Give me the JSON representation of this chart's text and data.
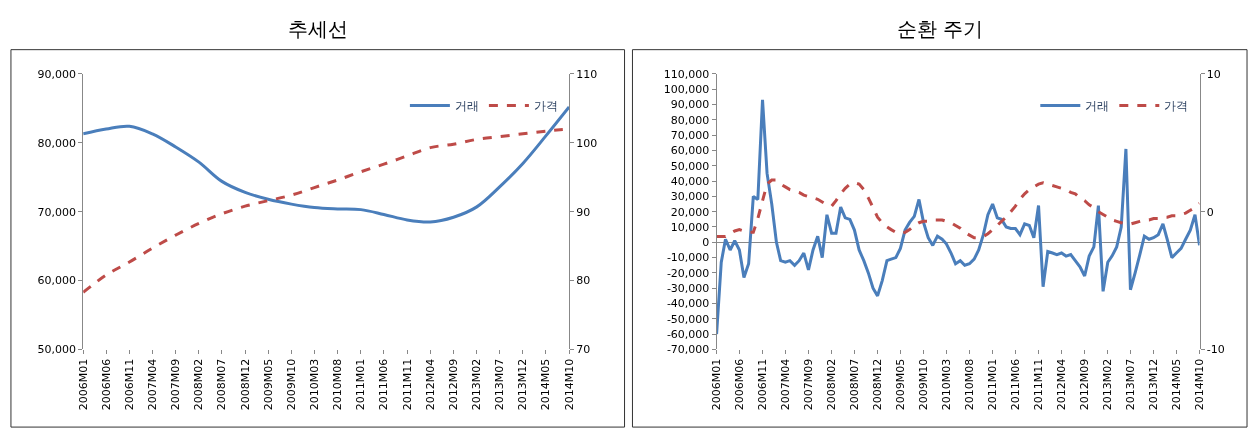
{
  "chart_data": [
    {
      "type": "line",
      "title": "추세선",
      "legend": "top right",
      "x": [
        "2006-01",
        "2006-06",
        "2006-11",
        "2007-04",
        "2007-09",
        "2008-02",
        "2008-07",
        "2008-12",
        "2009-05",
        "2009-10",
        "2010-03",
        "2010-08",
        "2011-01",
        "2011-06",
        "2011-11",
        "2012-04",
        "2012-09",
        "2013-02",
        "2013-07",
        "2013-12",
        "2014-05",
        "2014-10"
      ],
      "xlim": [
        "2006-01",
        "2014-10"
      ],
      "xticks": [
        {
          "value": "2006-01",
          "label": "2006M01"
        },
        {
          "value": "2006-06",
          "label": "2006M06"
        },
        {
          "value": "2006-11",
          "label": "2006M11"
        },
        {
          "value": "2007-04",
          "label": "2007M04"
        },
        {
          "value": "2007-09",
          "label": "2007M09"
        },
        {
          "value": "2008-02",
          "label": "2008M02"
        },
        {
          "value": "2008-07",
          "label": "2008M07"
        },
        {
          "value": "2008-12",
          "label": "2008M12"
        },
        {
          "value": "2009-05",
          "label": "2009M05"
        },
        {
          "value": "2009-10",
          "label": "2009M10"
        },
        {
          "value": "2010-03",
          "label": "2010M03"
        },
        {
          "value": "2010-08",
          "label": "2010M08"
        },
        {
          "value": "2011-01",
          "label": "2011M01"
        },
        {
          "value": "2011-06",
          "label": "2011M06"
        },
        {
          "value": "2011-11",
          "label": "2011M11"
        },
        {
          "value": "2012-04",
          "label": "2012M04"
        },
        {
          "value": "2012-09",
          "label": "2012M09"
        },
        {
          "value": "2013-02",
          "label": "2013M02"
        },
        {
          "value": "2013-07",
          "label": "2013M07"
        },
        {
          "value": "2013-12",
          "label": "2013M12"
        },
        {
          "value": "2014-05",
          "label": "2014M05"
        },
        {
          "value": "2014-10",
          "label": "2014M10"
        }
      ],
      "ylim": [
        50000,
        90000
      ],
      "yticks": [
        {
          "value": 50000,
          "label": "50,000"
        },
        {
          "value": 60000,
          "label": "60,000"
        },
        {
          "value": 70000,
          "label": "70,000"
        },
        {
          "value": 80000,
          "label": "80,000"
        },
        {
          "value": 90000,
          "label": "90,000"
        }
      ],
      "y2lim": [
        70,
        110
      ],
      "y2ticks": [
        70,
        80,
        90,
        100,
        110
      ],
      "series": [
        {
          "name": "거래",
          "color": "#4a7ebb",
          "line_style": "solid",
          "values": [
            81300,
            82000,
            82400,
            81300,
            79400,
            77200,
            74400,
            72800,
            71800,
            71100,
            70600,
            70400,
            70300,
            69600,
            68800,
            68500,
            69200,
            70700,
            73600,
            77000,
            81000,
            85200
          ]
        },
        {
          "name": "가격",
          "color": "#be4b48",
          "line_style": "dashed",
          "axis": "y2",
          "values": [
            78.3,
            80.8,
            82.7,
            84.7,
            86.6,
            88.3,
            89.7,
            90.8,
            91.6,
            92.4,
            93.5,
            94.6,
            95.8,
            96.9,
            98.1,
            99.3,
            99.8,
            100.5,
            100.9,
            101.3,
            101.7,
            102.0
          ]
        }
      ]
    },
    {
      "type": "line",
      "title": "순환 주기",
      "legend": "top right",
      "x": [
        "2006-01",
        "2006-02",
        "2006-03",
        "2006-04",
        "2006-05",
        "2006-06",
        "2006-07",
        "2006-08",
        "2006-09",
        "2006-10",
        "2006-11",
        "2006-12",
        "2007-01",
        "2007-02",
        "2007-03",
        "2007-04",
        "2007-05",
        "2007-06",
        "2007-07",
        "2007-08",
        "2007-09",
        "2007-10",
        "2007-11",
        "2007-12",
        "2008-01",
        "2008-02",
        "2008-03",
        "2008-04",
        "2008-05",
        "2008-06",
        "2008-07",
        "2008-08",
        "2008-09",
        "2008-10",
        "2008-11",
        "2008-12",
        "2009-01",
        "2009-02",
        "2009-03",
        "2009-04",
        "2009-05",
        "2009-06",
        "2009-07",
        "2009-08",
        "2009-09",
        "2009-10",
        "2009-11",
        "2009-12",
        "2010-01",
        "2010-02",
        "2010-03",
        "2010-04",
        "2010-05",
        "2010-06",
        "2010-07",
        "2010-08",
        "2010-09",
        "2010-10",
        "2010-11",
        "2010-12",
        "2011-01",
        "2011-02",
        "2011-03",
        "2011-04",
        "2011-05",
        "2011-06",
        "2011-07",
        "2011-08",
        "2011-09",
        "2011-10",
        "2011-11",
        "2011-12",
        "2012-01",
        "2012-02",
        "2012-03",
        "2012-04",
        "2012-05",
        "2012-06",
        "2012-07",
        "2012-08",
        "2012-09",
        "2012-10",
        "2012-11",
        "2012-12",
        "2013-01",
        "2013-02",
        "2013-03",
        "2013-04",
        "2013-05",
        "2013-06",
        "2013-07",
        "2013-08",
        "2013-09",
        "2013-10",
        "2013-11",
        "2013-12",
        "2014-01",
        "2014-02",
        "2014-03",
        "2014-04",
        "2014-05",
        "2014-06",
        "2014-07",
        "2014-08",
        "2014-09",
        "2014-10"
      ],
      "xlim": [
        "2006-01",
        "2014-10"
      ],
      "xticks": [
        {
          "value": "2006-01",
          "label": "2006M01"
        },
        {
          "value": "2006-06",
          "label": "2006M06"
        },
        {
          "value": "2006-11",
          "label": "2006M11"
        },
        {
          "value": "2007-04",
          "label": "2007M04"
        },
        {
          "value": "2007-09",
          "label": "2007M09"
        },
        {
          "value": "2008-02",
          "label": "2008M02"
        },
        {
          "value": "2008-07",
          "label": "2008M07"
        },
        {
          "value": "2008-12",
          "label": "2008M12"
        },
        {
          "value": "2009-05",
          "label": "2009M05"
        },
        {
          "value": "2009-10",
          "label": "2009M10"
        },
        {
          "value": "2010-03",
          "label": "2010M03"
        },
        {
          "value": "2010-08",
          "label": "2010M08"
        },
        {
          "value": "2011-01",
          "label": "2011M01"
        },
        {
          "value": "2011-06",
          "label": "2011M06"
        },
        {
          "value": "2011-11",
          "label": "2011M11"
        },
        {
          "value": "2012-04",
          "label": "2012M04"
        },
        {
          "value": "2012-09",
          "label": "2012M09"
        },
        {
          "value": "2013-02",
          "label": "2013M02"
        },
        {
          "value": "2013-07",
          "label": "2013M07"
        },
        {
          "value": "2013-12",
          "label": "2013M12"
        },
        {
          "value": "2014-05",
          "label": "2014M05"
        },
        {
          "value": "2014-10",
          "label": "2014M10"
        }
      ],
      "ylim": [
        -70000,
        110000
      ],
      "yticks": [
        {
          "value": -70000,
          "label": "-70,000"
        },
        {
          "value": -60000,
          "label": "-60,000"
        },
        {
          "value": -50000,
          "label": "-50,000"
        },
        {
          "value": -40000,
          "label": "-40,000"
        },
        {
          "value": -30000,
          "label": "-30,000"
        },
        {
          "value": -20000,
          "label": "-20,000"
        },
        {
          "value": -10000,
          "label": "-10,000"
        },
        {
          "value": 0,
          "label": "0"
        },
        {
          "value": 10000,
          "label": "10,000"
        },
        {
          "value": 20000,
          "label": "20,000"
        },
        {
          "value": 30000,
          "label": "30,000"
        },
        {
          "value": 40000,
          "label": "40,000"
        },
        {
          "value": 50000,
          "label": "50,000"
        },
        {
          "value": 60000,
          "label": "60,000"
        },
        {
          "value": 70000,
          "label": "70,000"
        },
        {
          "value": 80000,
          "label": "80,000"
        },
        {
          "value": 90000,
          "label": "90,000"
        },
        {
          "value": 100000,
          "label": "100,000"
        },
        {
          "value": 110000,
          "label": "110,000"
        }
      ],
      "y2lim": [
        -10,
        10
      ],
      "y2ticks": [
        -10,
        0,
        10
      ],
      "series": [
        {
          "name": "거래",
          "color": "#4a7ebb",
          "line_style": "solid",
          "values": [
            -60000,
            -13000,
            2000,
            -5000,
            1000,
            -5000,
            -23000,
            -14000,
            30000,
            28000,
            93000,
            45000,
            25000,
            0,
            -12000,
            -13000,
            -12000,
            -15000,
            -12000,
            -7000,
            -18000,
            -5000,
            4000,
            -10000,
            18000,
            6000,
            6000,
            23000,
            16000,
            15000,
            8000,
            -5000,
            -12000,
            -20000,
            -30000,
            -35000,
            -25000,
            -12000,
            -11000,
            -10000,
            -4000,
            8000,
            13000,
            17000,
            28000,
            13000,
            3000,
            -2000,
            4000,
            2000,
            -1000,
            -7000,
            -14000,
            -12000,
            -15000,
            -14000,
            -11000,
            -5000,
            5000,
            18000,
            25000,
            16000,
            15000,
            10000,
            9000,
            9000,
            5000,
            12000,
            11000,
            3000,
            24000,
            -29000,
            -6000,
            -7000,
            -8000,
            -7000,
            -9000,
            -8000,
            -12000,
            -16000,
            -22000,
            -9000,
            -3000,
            24000,
            -32000,
            -13000,
            -9000,
            -3000,
            10000,
            61000,
            -31000,
            -20000,
            -8000,
            4000,
            2000,
            3000,
            5000,
            12000,
            2000,
            -10000,
            -7000,
            -4000,
            2000,
            8000,
            18000,
            -2000
          ]
        },
        {
          "name": "가격",
          "color": "#be4b48",
          "line_style": "dashed",
          "axis": "y2",
          "values": [
            -1.8,
            -1.8,
            -1.8,
            -1.6,
            -1.4,
            -1.3,
            -1.4,
            -1.5,
            -1.5,
            -0.5,
            0.8,
            2.0,
            2.3,
            2.3,
            2.0,
            1.8,
            1.6,
            1.5,
            1.4,
            1.2,
            1.1,
            1.0,
            0.9,
            0.7,
            0.5,
            0.4,
            0.8,
            1.3,
            1.7,
            2.0,
            2.1,
            2.0,
            1.6,
            1.0,
            0.3,
            -0.4,
            -0.8,
            -1.1,
            -1.3,
            -1.5,
            -1.6,
            -1.5,
            -1.3,
            -1.0,
            -0.8,
            -0.7,
            -0.7,
            -0.6,
            -0.6,
            -0.6,
            -0.7,
            -0.8,
            -1.0,
            -1.2,
            -1.5,
            -1.7,
            -1.9,
            -1.9,
            -1.8,
            -1.6,
            -1.3,
            -1.0,
            -0.7,
            -0.4,
            0.0,
            0.4,
            0.9,
            1.3,
            1.6,
            1.8,
            2.0,
            2.1,
            2.0,
            1.9,
            1.8,
            1.7,
            1.6,
            1.4,
            1.3,
            1.0,
            0.8,
            0.5,
            0.3,
            0.0,
            -0.2,
            -0.4,
            -0.6,
            -0.7,
            -0.8,
            -0.9,
            -0.9,
            -0.8,
            -0.7,
            -0.6,
            -0.6,
            -0.5,
            -0.5,
            -0.4,
            -0.4,
            -0.3,
            -0.3,
            -0.2,
            -0.1,
            0.1,
            0.3,
            0.6
          ]
        }
      ]
    }
  ]
}
